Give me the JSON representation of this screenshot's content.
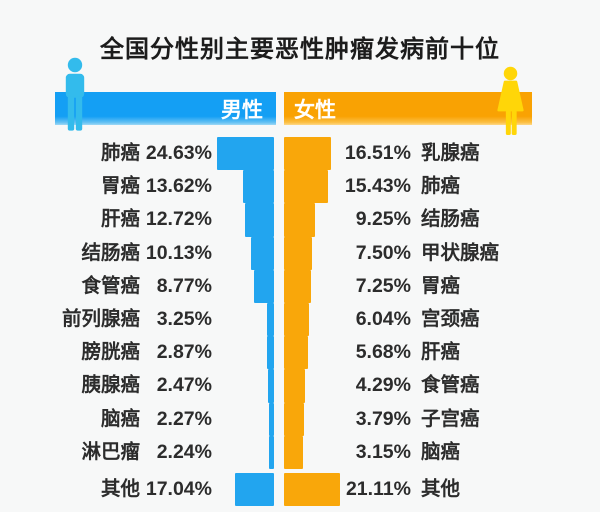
{
  "title": "全国分性别主要恶性肿瘤发病前十位",
  "legend": {
    "male": "男性",
    "female": "女性"
  },
  "colors": {
    "background": "#f7f8f8",
    "text": "#2c2c2c",
    "male_header": "#149ff4",
    "male_bar": "#22a5ef",
    "male_figure": "#33bbec",
    "female_header": "#f9a203",
    "female_bar": "#f9a70a",
    "female_figure": "#ffd608"
  },
  "icons": {
    "male-figure-icon": "person-male-pictogram",
    "female-figure-icon": "person-female-pictogram"
  },
  "chart_data": {
    "type": "bar",
    "layout": "tornado-bidirectional-horizontal",
    "title": "全国分性别主要恶性肿瘤发病前十位",
    "unit": "%",
    "value_format": "percent",
    "legend_position": "header-center",
    "series": [
      {
        "name": "男性",
        "side": "left",
        "color": "#22a5ef",
        "data": [
          {
            "label": "肺癌",
            "value": 24.63,
            "text": "24.63%"
          },
          {
            "label": "胃癌",
            "value": 13.62,
            "text": "13.62%"
          },
          {
            "label": "肝癌",
            "value": 12.72,
            "text": "12.72%"
          },
          {
            "label": "结肠癌",
            "value": 10.13,
            "text": "10.13%"
          },
          {
            "label": "食管癌",
            "value": 8.77,
            "text": "8.77%"
          },
          {
            "label": "前列腺癌",
            "value": 3.25,
            "text": "3.25%"
          },
          {
            "label": "膀胱癌",
            "value": 2.87,
            "text": "2.87%"
          },
          {
            "label": "胰腺癌",
            "value": 2.47,
            "text": "2.47%"
          },
          {
            "label": "脑癌",
            "value": 2.27,
            "text": "2.27%"
          },
          {
            "label": "淋巴瘤",
            "value": 2.24,
            "text": "2.24%"
          },
          {
            "label": "其他",
            "value": 17.04,
            "text": "17.04%"
          }
        ]
      },
      {
        "name": "女性",
        "side": "right",
        "color": "#f9a70a",
        "data": [
          {
            "label": "乳腺癌",
            "value": 16.51,
            "text": "16.51%"
          },
          {
            "label": "肺癌",
            "value": 15.43,
            "text": "15.43%"
          },
          {
            "label": "结肠癌",
            "value": 9.25,
            "text": "9.25%"
          },
          {
            "label": "甲状腺癌",
            "value": 7.5,
            "text": "7.50%"
          },
          {
            "label": "胃癌",
            "value": 7.25,
            "text": "7.25%"
          },
          {
            "label": "宫颈癌",
            "value": 6.04,
            "text": "6.04%"
          },
          {
            "label": "肝癌",
            "value": 5.68,
            "text": "5.68%"
          },
          {
            "label": "食管癌",
            "value": 4.29,
            "text": "4.29%"
          },
          {
            "label": "子宫癌",
            "value": 3.79,
            "text": "3.79%"
          },
          {
            "label": "脑癌",
            "value": 3.15,
            "text": "3.15%"
          },
          {
            "label": "其他",
            "value": 21.11,
            "text": "21.11%"
          }
        ]
      }
    ]
  }
}
